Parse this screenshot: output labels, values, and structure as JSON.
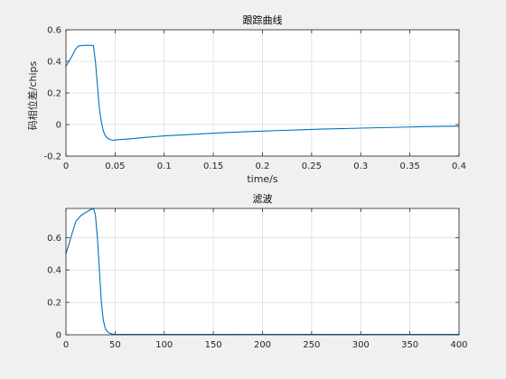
{
  "chart_data": [
    {
      "type": "line",
      "title": "跟踪曲线",
      "xlabel": "time/s",
      "ylabel": "码相位差/chips",
      "xlim": [
        0,
        0.4
      ],
      "ylim": [
        -0.2,
        0.6
      ],
      "xticks": [
        0,
        0.05,
        0.1,
        0.15,
        0.2,
        0.25,
        0.3,
        0.35,
        0.4
      ],
      "xtick_labels": [
        "0",
        "0.05",
        "0.1",
        "0.15",
        "0.2",
        "0.25",
        "0.3",
        "0.35",
        "0.4"
      ],
      "yticks": [
        -0.2,
        0,
        0.2,
        0.4,
        0.6
      ],
      "ytick_labels": [
        "-0.2",
        "0",
        "0.2",
        "0.4",
        "0.6"
      ],
      "grid": true,
      "line_color": "#0072bd",
      "series": [
        {
          "x": [
            0,
            0.005,
            0.01,
            0.013,
            0.016,
            0.02,
            0.025,
            0.028,
            0.03,
            0.032,
            0.034,
            0.036,
            0.038,
            0.04,
            0.042,
            0.045,
            0.048,
            0.05,
            0.055,
            0.06,
            0.07,
            0.08,
            0.09,
            0.1,
            0.12,
            0.14,
            0.16,
            0.18,
            0.2,
            0.22,
            0.24,
            0.26,
            0.28,
            0.3,
            0.32,
            0.34,
            0.36,
            0.38,
            0.4
          ],
          "y": [
            0.37,
            0.42,
            0.48,
            0.498,
            0.5,
            0.502,
            0.502,
            0.5,
            0.4,
            0.25,
            0.1,
            0.02,
            -0.04,
            -0.07,
            -0.085,
            -0.095,
            -0.1,
            -0.098,
            -0.095,
            -0.093,
            -0.088,
            -0.082,
            -0.077,
            -0.072,
            -0.065,
            -0.058,
            -0.052,
            -0.046,
            -0.042,
            -0.037,
            -0.033,
            -0.029,
            -0.026,
            -0.023,
            -0.02,
            -0.017,
            -0.014,
            -0.012,
            -0.01
          ]
        }
      ]
    },
    {
      "type": "line",
      "title": "滤波",
      "xlim": [
        0,
        400
      ],
      "ylim": [
        0,
        0.78
      ],
      "xticks": [
        0,
        50,
        100,
        150,
        200,
        250,
        300,
        350,
        400
      ],
      "xtick_labels": [
        "0",
        "50",
        "100",
        "150",
        "200",
        "250",
        "300",
        "350",
        "400"
      ],
      "yticks": [
        0,
        0.2,
        0.4,
        0.6
      ],
      "ytick_labels": [
        "0",
        "0.2",
        "0.4",
        "0.6"
      ],
      "grid": true,
      "line_color": "#0072bd",
      "series": [
        {
          "x": [
            0,
            5,
            10,
            15,
            20,
            25,
            28,
            30,
            32,
            34,
            36,
            38,
            40,
            42,
            45,
            48,
            50,
            60,
            80,
            100,
            150,
            200,
            250,
            300,
            350,
            400
          ],
          "y": [
            0.5,
            0.6,
            0.7,
            0.735,
            0.755,
            0.772,
            0.78,
            0.74,
            0.6,
            0.4,
            0.2,
            0.09,
            0.04,
            0.02,
            0.008,
            0.004,
            0.002,
            0.002,
            0.003,
            0.002,
            0.002,
            0.003,
            0.002,
            0.002,
            0.003,
            0.002
          ]
        }
      ]
    }
  ]
}
